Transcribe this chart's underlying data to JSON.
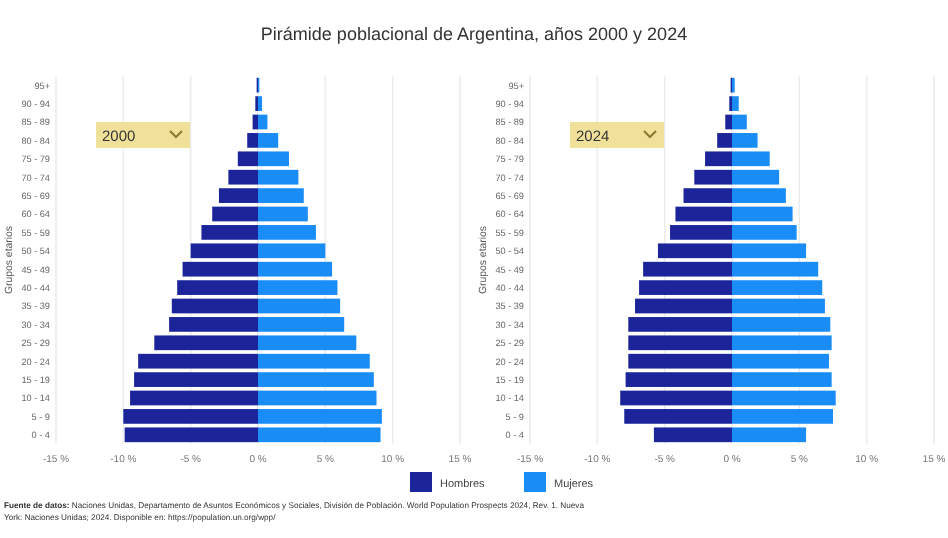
{
  "chart_data": [
    {
      "type": "bar",
      "title": "Pirámide poblacional de Argentina, años 2000 y 2024",
      "subtitle": "2000",
      "ylabel": "Grupos etarios",
      "orientation": "horizontal",
      "stacked": true,
      "grid": "x",
      "legend": "bottom",
      "categories": [
        "95+",
        "90 - 94",
        "85 - 89",
        "80 - 84",
        "75 - 79",
        "70 - 74",
        "65 - 69",
        "60 - 64",
        "55 - 59",
        "50 - 54",
        "45 - 49",
        "40 - 44",
        "35 - 39",
        "30 - 34",
        "25 - 29",
        "20 - 24",
        "15 - 19",
        "10 - 14",
        "5 - 9",
        "0 - 4"
      ],
      "series": [
        {
          "name": "Hombres",
          "color": "#1b2599",
          "values": [
            -0.1,
            -0.2,
            -0.4,
            -0.8,
            -1.5,
            -2.2,
            -2.9,
            -3.4,
            -4.2,
            -5.0,
            -5.6,
            -6.0,
            -6.4,
            -6.6,
            -7.7,
            -8.9,
            -9.2,
            -9.5,
            -10.0,
            -9.9
          ]
        },
        {
          "name": "Mujeres",
          "color": "#1a8cf5",
          "values": [
            0.1,
            0.3,
            0.7,
            1.5,
            2.3,
            3.0,
            3.4,
            3.7,
            4.3,
            5.0,
            5.5,
            5.9,
            6.1,
            6.4,
            7.3,
            8.3,
            8.6,
            8.8,
            9.2,
            9.1
          ]
        }
      ],
      "xlim": [
        -15,
        15
      ],
      "xticks": [
        {
          "value": -15,
          "label": "-15 %"
        },
        {
          "value": -10,
          "label": "-10 %"
        },
        {
          "value": -5,
          "label": "-5 %"
        },
        {
          "value": 0,
          "label": "0 %"
        },
        {
          "value": 5,
          "label": "5 %"
        },
        {
          "value": 10,
          "label": "10 %"
        },
        {
          "value": 15,
          "label": "15 %"
        }
      ],
      "annotations": [
        "Fuente de datos: Naciones Unidas, Departamento de Asuntos Económicos y Sociales, División de Población. World Population Prospects 2024, Rev. 1. Nueva York: Naciones Unidas; 2024. Disponible en: https://population.un.org/wpp/"
      ]
    },
    {
      "type": "bar",
      "subtitle": "2024",
      "ylabel": "Grupos etarios",
      "orientation": "horizontal",
      "stacked": true,
      "grid": "x",
      "categories": [
        "95+",
        "90 - 94",
        "85 - 89",
        "80 - 84",
        "75 - 79",
        "70 - 74",
        "65 - 69",
        "60 - 64",
        "55 - 59",
        "50 - 54",
        "45 - 49",
        "40 - 44",
        "35 - 39",
        "30 - 34",
        "25 - 29",
        "20 - 24",
        "15 - 19",
        "10 - 14",
        "5 - 9",
        "0 - 4"
      ],
      "series": [
        {
          "color": "#1b2599",
          "values": [
            -0.1,
            -0.2,
            -0.5,
            -1.1,
            -2.0,
            -2.8,
            -3.6,
            -4.2,
            -4.6,
            -5.5,
            -6.6,
            -6.9,
            -7.2,
            -7.7,
            -7.7,
            -7.7,
            -7.9,
            -8.3,
            -8.0,
            -5.8
          ]
        },
        {
          "color": "#1a8cf5",
          "values": [
            0.2,
            0.5,
            1.1,
            1.9,
            2.8,
            3.5,
            4.0,
            4.5,
            4.8,
            5.5,
            6.4,
            6.7,
            6.9,
            7.3,
            7.4,
            7.2,
            7.4,
            7.7,
            7.5,
            5.5
          ]
        }
      ],
      "xlim": [
        -15,
        15
      ],
      "xticks": [
        {
          "value": -15,
          "label": "-15 %"
        },
        {
          "value": -10,
          "label": "-10 %"
        },
        {
          "value": -5,
          "label": "-5 %"
        },
        {
          "value": 0,
          "label": "0 %"
        },
        {
          "value": 5,
          "label": "5 %"
        },
        {
          "value": 10,
          "label": "10 %"
        },
        {
          "value": 15,
          "label": "15 %"
        }
      ]
    }
  ]
}
